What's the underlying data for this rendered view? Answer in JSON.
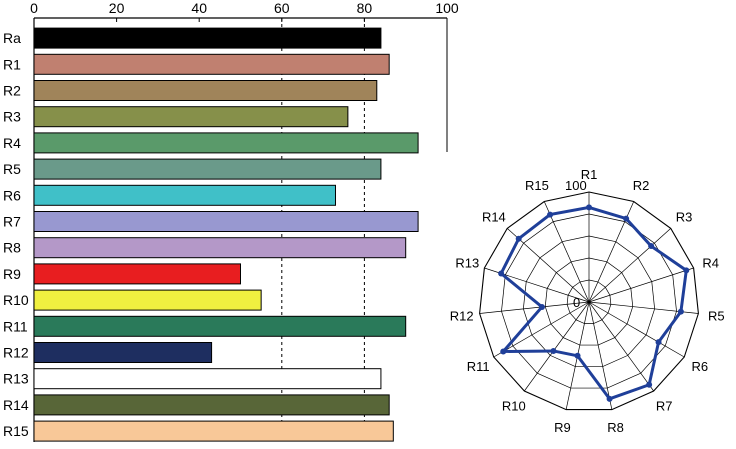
{
  "colors": {
    "radar_line": "#1f3f99",
    "grid_dash": "#000000",
    "bar_outline": "#000000"
  },
  "chart_data": [
    {
      "type": "bar",
      "orientation": "horizontal",
      "categories": [
        "Ra",
        "R1",
        "R2",
        "R3",
        "R4",
        "R5",
        "R6",
        "R7",
        "R8",
        "R9",
        "R10",
        "R11",
        "R12",
        "R13",
        "R14",
        "R15"
      ],
      "values": [
        84,
        86,
        83,
        76,
        93,
        84,
        73,
        93,
        90,
        50,
        55,
        90,
        43,
        84,
        86,
        87
      ],
      "colors": [
        "#000000",
        "#c08070",
        "#a0845a",
        "#86904a",
        "#5a9a6a",
        "#6a9a8a",
        "#40c0c8",
        "#9898d0",
        "#b498c8",
        "#e81e20",
        "#f0f040",
        "#2a7a5a",
        "#1e2e60",
        "#ffffff",
        "#586638",
        "#f8c898"
      ],
      "xlim": [
        0,
        100
      ],
      "x_ticks": [
        "0",
        "20",
        "40",
        "60",
        "80",
        "100"
      ],
      "axis_position": "top",
      "grid": "dashed vertical at 60 and 80"
    },
    {
      "type": "radar",
      "axes": [
        "R1",
        "R2",
        "R3",
        "R4",
        "R5",
        "R6",
        "R7",
        "R8",
        "R9",
        "R10",
        "R11",
        "R12",
        "R13",
        "R14",
        "R15"
      ],
      "values": [
        86,
        83,
        76,
        93,
        84,
        73,
        93,
        90,
        50,
        55,
        90,
        43,
        84,
        86,
        87
      ],
      "range": [
        0,
        100
      ],
      "ring_labels": [
        "0",
        "100"
      ],
      "rings": 5
    }
  ]
}
